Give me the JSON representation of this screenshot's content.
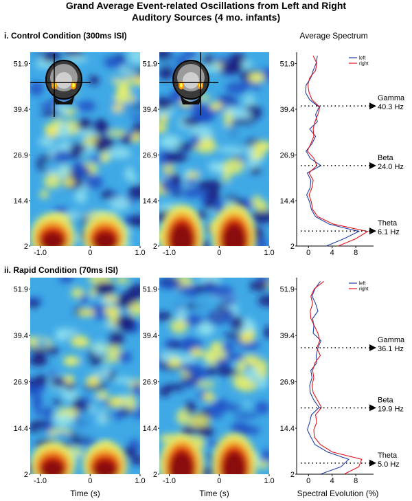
{
  "figure": {
    "title_line1": "Grand Average Event-related Oscillations from Left and Right",
    "title_line2": "Auditory Sources (4 mo. infants)",
    "spectrum_header": "Average Spectrum",
    "x_axis_title": "Time (s)",
    "spectrum_x_axis_title": "Spectral Evolution (%)"
  },
  "colors": {
    "left": "#1f3fa8",
    "right": "#e0121c",
    "colormap": [
      "#1a1a7a",
      "#1f4fc4",
      "#3fa9e6",
      "#8fe0ee",
      "#e8ef6a",
      "#f2b22a",
      "#e83010",
      "#8a0a0a"
    ]
  },
  "chart_data": [
    {
      "type": "heatmap",
      "panel": "control-left",
      "title": "i. Control Condition (300ms ISI)",
      "xlabel": "Time (s)",
      "x_ticks": [
        "-1.0",
        "0",
        "1.0"
      ],
      "y_ticks": [
        "51.9",
        "39.4",
        "26.9",
        "14.4",
        "2"
      ],
      "xlim": [
        -1.2,
        1.0
      ],
      "ylim": [
        2,
        55
      ]
    },
    {
      "type": "heatmap",
      "panel": "control-right",
      "xlabel": "Time (s)",
      "x_ticks": [
        "-1.0",
        "0",
        "1.0"
      ],
      "y_ticks": [
        "51.9",
        "39.4",
        "26.9",
        "14.4",
        "2"
      ],
      "xlim": [
        -1.2,
        1.0
      ],
      "ylim": [
        2,
        55
      ]
    },
    {
      "type": "line",
      "panel": "control-spectrum",
      "x_ticks": [
        "0",
        "4",
        "8"
      ],
      "y_ticks": [
        "51.9",
        "39.4",
        "26.9",
        "14.4",
        "2"
      ],
      "xlim": [
        -2,
        11
      ],
      "ylim": [
        2,
        55
      ],
      "legend_position": "top-right",
      "series": [
        {
          "name": "left",
          "freq": [
            2,
            4,
            6,
            8,
            10,
            12,
            14,
            16,
            18,
            20,
            22,
            24,
            26,
            28,
            30,
            32,
            34,
            36,
            38,
            40,
            42,
            44,
            46,
            48,
            50,
            52,
            54
          ],
          "values": [
            3,
            6,
            8.5,
            3.5,
            1.2,
            0.5,
            0.2,
            -0.3,
            0.3,
            0.4,
            -0.2,
            2.1,
            0.3,
            -0.4,
            0.6,
            1.2,
            0.2,
            1.5,
            1.2,
            1.8,
            0.2,
            -0.5,
            -0.4,
            0.4,
            0.8,
            1.3,
            1.5
          ]
        },
        {
          "name": "right",
          "freq": [
            2,
            4,
            6,
            8,
            10,
            12,
            14,
            16,
            18,
            20,
            22,
            24,
            26,
            28,
            30,
            32,
            34,
            36,
            38,
            40,
            42,
            44,
            46,
            48,
            50,
            52,
            54
          ],
          "values": [
            5,
            8,
            10,
            4.2,
            1.6,
            0.7,
            0.5,
            0.1,
            0.6,
            0.8,
            0.1,
            1.4,
            0.9,
            -0.2,
            0.4,
            0.9,
            0.8,
            1.1,
            1.6,
            1.9,
            0.6,
            0.1,
            -0.1,
            0.2,
            1.2,
            1.4,
            0.8
          ]
        }
      ],
      "annotations": [
        {
          "band": "Gamma",
          "value": "40.3 Hz",
          "freq": 40.3
        },
        {
          "band": "Beta",
          "value": "24.0 Hz",
          "freq": 24.0
        },
        {
          "band": "Theta",
          "value": "6.1 Hz",
          "freq": 6.1
        }
      ]
    },
    {
      "type": "heatmap",
      "panel": "rapid-left",
      "title": "ii. Rapid Condition (70ms ISI)",
      "xlabel": "Time (s)",
      "x_ticks": [
        "-1.0",
        "0",
        "1.0"
      ],
      "y_ticks": [
        "51.9",
        "39.4",
        "26.9",
        "14.4",
        "2"
      ],
      "xlim": [
        -1.2,
        1.0
      ],
      "ylim": [
        2,
        55
      ]
    },
    {
      "type": "heatmap",
      "panel": "rapid-right",
      "xlabel": "Time (s)",
      "x_ticks": [
        "-1.0",
        "0",
        "1.0"
      ],
      "y_ticks": [
        "51.9",
        "39.4",
        "26.9",
        "14.4",
        "2"
      ],
      "xlim": [
        -1.2,
        1.0
      ],
      "ylim": [
        2,
        55
      ]
    },
    {
      "type": "line",
      "panel": "rapid-spectrum",
      "x_ticks": [
        "0",
        "4",
        "8"
      ],
      "y_ticks": [
        "51.9",
        "39.4",
        "26.9",
        "14.4",
        "2"
      ],
      "xlim": [
        -2,
        11
      ],
      "ylim": [
        2,
        55
      ],
      "legend_position": "top-right",
      "series": [
        {
          "name": "left",
          "freq": [
            2,
            4,
            6,
            8,
            10,
            12,
            14,
            16,
            18,
            20,
            22,
            24,
            26,
            28,
            30,
            32,
            34,
            36,
            38,
            40,
            42,
            44,
            46,
            48,
            50,
            52,
            54
          ],
          "values": [
            2,
            5.5,
            6.8,
            3.2,
            1.1,
            0.4,
            -0.2,
            0.2,
            0.5,
            1.8,
            0.9,
            0.3,
            0.2,
            0.6,
            0.4,
            1.4,
            1.3,
            1.6,
            2.1,
            0.8,
            0.9,
            0.7,
            1.6,
            1.2,
            0.6,
            1.1,
            2.0
          ]
        },
        {
          "name": "right",
          "freq": [
            2,
            4,
            6,
            8,
            10,
            12,
            14,
            16,
            18,
            20,
            22,
            24,
            26,
            28,
            30,
            32,
            34,
            36,
            38,
            40,
            42,
            44,
            46,
            48,
            50,
            52,
            54
          ],
          "values": [
            6,
            8.5,
            9,
            4,
            2,
            1,
            0.9,
            1.4,
            1.2,
            2.2,
            1.5,
            0.8,
            0.6,
            0.9,
            0.7,
            1.1,
            2.0,
            1.4,
            1.9,
            1.6,
            1.0,
            0.4,
            0.3,
            0.7,
            0.4,
            1.0,
            2.6
          ]
        }
      ],
      "annotations": [
        {
          "band": "Gamma",
          "value": "36.1 Hz",
          "freq": 36.1
        },
        {
          "band": "Beta",
          "value": "19.9 Hz",
          "freq": 19.9
        },
        {
          "band": "Theta",
          "value": "5.0 Hz",
          "freq": 5.0
        }
      ]
    }
  ]
}
